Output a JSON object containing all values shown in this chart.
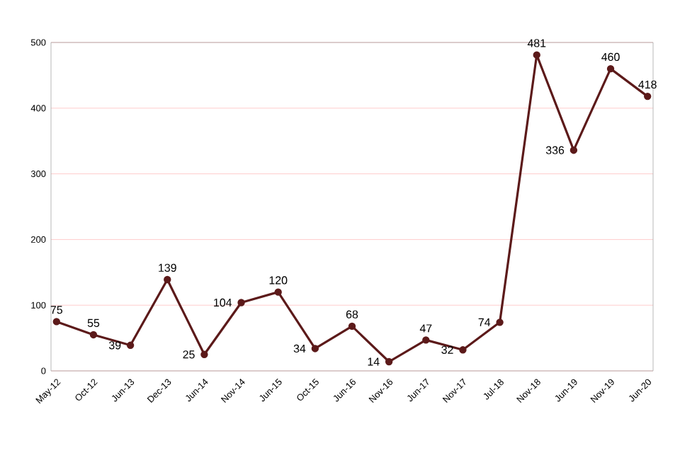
{
  "chart_data": {
    "type": "line",
    "categories": [
      "May-12",
      "Oct-12",
      "Jun-13",
      "Dec-13",
      "Jun-14",
      "Nov-14",
      "Jun-15",
      "Oct-15",
      "Jun-16",
      "Nov-16",
      "Jun-17",
      "Nov-17",
      "Jul-18",
      "Nov-18",
      "Jun-19",
      "Nov-19",
      "Jun-20"
    ],
    "values": [
      75,
      55,
      39,
      139,
      25,
      104,
      120,
      34,
      68,
      14,
      47,
      32,
      74,
      481,
      336,
      460,
      418
    ],
    "color": "#5c1a1a",
    "marker": "circle",
    "line_style": "solid",
    "ylim": [
      0,
      500
    ],
    "yticks": [
      0,
      100,
      200,
      300,
      400,
      500
    ],
    "grid": "y",
    "data_labels": true
  }
}
